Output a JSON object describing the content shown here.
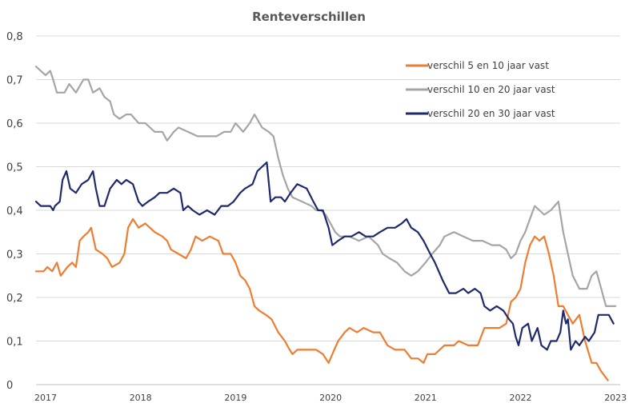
{
  "chart_data": {
    "type": "line",
    "title": "Renteverschillen",
    "xlabel": "",
    "ylabel": "",
    "ylim": [
      0,
      0.8
    ],
    "xlim": [
      2017.0,
      2023.15
    ],
    "y_ticks": [
      "0",
      "0,1",
      "0,2",
      "0,3",
      "0,4",
      "0,5",
      "0,6",
      "0,7",
      "0,8"
    ],
    "x_ticks": [
      "2017",
      "2018",
      "2019",
      "2020",
      "2021",
      "2022",
      "2023"
    ],
    "grid": "horizontal",
    "legend_position": "top-right",
    "series": [
      {
        "name": "verschil 5 en 10 jaar vast",
        "color": "#ED7D31",
        "points": [
          [
            2017.0,
            0.26
          ],
          [
            2017.08,
            0.26
          ],
          [
            2017.12,
            0.27
          ],
          [
            2017.17,
            0.26
          ],
          [
            2017.22,
            0.28
          ],
          [
            2017.26,
            0.25
          ],
          [
            2017.33,
            0.27
          ],
          [
            2017.38,
            0.28
          ],
          [
            2017.42,
            0.27
          ],
          [
            2017.46,
            0.33
          ],
          [
            2017.5,
            0.34
          ],
          [
            2017.55,
            0.35
          ],
          [
            2017.58,
            0.36
          ],
          [
            2017.63,
            0.31
          ],
          [
            2017.7,
            0.3
          ],
          [
            2017.75,
            0.29
          ],
          [
            2017.8,
            0.27
          ],
          [
            2017.88,
            0.28
          ],
          [
            2017.93,
            0.3
          ],
          [
            2017.97,
            0.36
          ],
          [
            2018.02,
            0.38
          ],
          [
            2018.08,
            0.36
          ],
          [
            2018.15,
            0.37
          ],
          [
            2018.25,
            0.35
          ],
          [
            2018.33,
            0.34
          ],
          [
            2018.38,
            0.33
          ],
          [
            2018.42,
            0.31
          ],
          [
            2018.5,
            0.3
          ],
          [
            2018.58,
            0.29
          ],
          [
            2018.63,
            0.31
          ],
          [
            2018.68,
            0.34
          ],
          [
            2018.75,
            0.33
          ],
          [
            2018.83,
            0.34
          ],
          [
            2018.92,
            0.33
          ],
          [
            2018.97,
            0.3
          ],
          [
            2019.05,
            0.3
          ],
          [
            2019.1,
            0.28
          ],
          [
            2019.15,
            0.25
          ],
          [
            2019.2,
            0.24
          ],
          [
            2019.25,
            0.22
          ],
          [
            2019.3,
            0.18
          ],
          [
            2019.35,
            0.17
          ],
          [
            2019.42,
            0.16
          ],
          [
            2019.48,
            0.15
          ],
          [
            2019.55,
            0.12
          ],
          [
            2019.62,
            0.1
          ],
          [
            2019.67,
            0.08
          ],
          [
            2019.7,
            0.07
          ],
          [
            2019.75,
            0.08
          ],
          [
            2019.85,
            0.08
          ],
          [
            2019.95,
            0.08
          ],
          [
            2020.02,
            0.07
          ],
          [
            2020.08,
            0.05
          ],
          [
            2020.12,
            0.07
          ],
          [
            2020.18,
            0.1
          ],
          [
            2020.25,
            0.12
          ],
          [
            2020.3,
            0.13
          ],
          [
            2020.38,
            0.12
          ],
          [
            2020.45,
            0.13
          ],
          [
            2020.55,
            0.12
          ],
          [
            2020.62,
            0.12
          ],
          [
            2020.7,
            0.09
          ],
          [
            2020.78,
            0.08
          ],
          [
            2020.88,
            0.08
          ],
          [
            2020.95,
            0.06
          ],
          [
            2021.02,
            0.06
          ],
          [
            2021.08,
            0.05
          ],
          [
            2021.12,
            0.07
          ],
          [
            2021.2,
            0.07
          ],
          [
            2021.3,
            0.09
          ],
          [
            2021.4,
            0.09
          ],
          [
            2021.45,
            0.1
          ],
          [
            2021.55,
            0.09
          ],
          [
            2021.65,
            0.09
          ],
          [
            2021.72,
            0.13
          ],
          [
            2021.8,
            0.13
          ],
          [
            2021.88,
            0.13
          ],
          [
            2021.95,
            0.14
          ],
          [
            2022.0,
            0.19
          ],
          [
            2022.05,
            0.2
          ],
          [
            2022.1,
            0.22
          ],
          [
            2022.15,
            0.28
          ],
          [
            2022.2,
            0.32
          ],
          [
            2022.25,
            0.34
          ],
          [
            2022.3,
            0.33
          ],
          [
            2022.35,
            0.34
          ],
          [
            2022.4,
            0.3
          ],
          [
            2022.45,
            0.25
          ],
          [
            2022.5,
            0.18
          ],
          [
            2022.55,
            0.18
          ],
          [
            2022.6,
            0.16
          ],
          [
            2022.65,
            0.14
          ],
          [
            2022.72,
            0.16
          ],
          [
            2022.78,
            0.1
          ],
          [
            2022.85,
            0.05
          ],
          [
            2022.9,
            0.05
          ],
          [
            2022.95,
            0.03
          ],
          [
            2023.02,
            0.01
          ]
        ]
      },
      {
        "name": "verschil 10 en 20 jaar vast",
        "color": "#A5A5A5",
        "points": [
          [
            2017.0,
            0.73
          ],
          [
            2017.05,
            0.72
          ],
          [
            2017.1,
            0.71
          ],
          [
            2017.15,
            0.72
          ],
          [
            2017.18,
            0.7
          ],
          [
            2017.22,
            0.67
          ],
          [
            2017.3,
            0.67
          ],
          [
            2017.35,
            0.69
          ],
          [
            2017.42,
            0.67
          ],
          [
            2017.5,
            0.7
          ],
          [
            2017.55,
            0.7
          ],
          [
            2017.6,
            0.67
          ],
          [
            2017.67,
            0.68
          ],
          [
            2017.72,
            0.66
          ],
          [
            2017.78,
            0.65
          ],
          [
            2017.82,
            0.62
          ],
          [
            2017.88,
            0.61
          ],
          [
            2017.95,
            0.62
          ],
          [
            2018.0,
            0.62
          ],
          [
            2018.08,
            0.6
          ],
          [
            2018.15,
            0.6
          ],
          [
            2018.25,
            0.58
          ],
          [
            2018.33,
            0.58
          ],
          [
            2018.38,
            0.56
          ],
          [
            2018.45,
            0.58
          ],
          [
            2018.5,
            0.59
          ],
          [
            2018.6,
            0.58
          ],
          [
            2018.7,
            0.57
          ],
          [
            2018.8,
            0.57
          ],
          [
            2018.9,
            0.57
          ],
          [
            2018.98,
            0.58
          ],
          [
            2019.05,
            0.58
          ],
          [
            2019.1,
            0.6
          ],
          [
            2019.18,
            0.58
          ],
          [
            2019.25,
            0.6
          ],
          [
            2019.3,
            0.62
          ],
          [
            2019.38,
            0.59
          ],
          [
            2019.45,
            0.58
          ],
          [
            2019.5,
            0.57
          ],
          [
            2019.55,
            0.52
          ],
          [
            2019.6,
            0.48
          ],
          [
            2019.65,
            0.45
          ],
          [
            2019.7,
            0.43
          ],
          [
            2019.8,
            0.42
          ],
          [
            2019.9,
            0.41
          ],
          [
            2019.95,
            0.4
          ],
          [
            2020.0,
            0.4
          ],
          [
            2020.05,
            0.39
          ],
          [
            2020.1,
            0.37
          ],
          [
            2020.15,
            0.35
          ],
          [
            2020.2,
            0.34
          ],
          [
            2020.3,
            0.34
          ],
          [
            2020.4,
            0.33
          ],
          [
            2020.5,
            0.34
          ],
          [
            2020.55,
            0.33
          ],
          [
            2020.6,
            0.32
          ],
          [
            2020.65,
            0.3
          ],
          [
            2020.72,
            0.29
          ],
          [
            2020.8,
            0.28
          ],
          [
            2020.88,
            0.26
          ],
          [
            2020.95,
            0.25
          ],
          [
            2021.02,
            0.26
          ],
          [
            2021.1,
            0.28
          ],
          [
            2021.17,
            0.3
          ],
          [
            2021.25,
            0.32
          ],
          [
            2021.3,
            0.34
          ],
          [
            2021.4,
            0.35
          ],
          [
            2021.5,
            0.34
          ],
          [
            2021.6,
            0.33
          ],
          [
            2021.7,
            0.33
          ],
          [
            2021.8,
            0.32
          ],
          [
            2021.88,
            0.32
          ],
          [
            2021.95,
            0.31
          ],
          [
            2022.0,
            0.29
          ],
          [
            2022.05,
            0.3
          ],
          [
            2022.1,
            0.33
          ],
          [
            2022.15,
            0.35
          ],
          [
            2022.2,
            0.38
          ],
          [
            2022.25,
            0.41
          ],
          [
            2022.3,
            0.4
          ],
          [
            2022.35,
            0.39
          ],
          [
            2022.42,
            0.4
          ],
          [
            2022.5,
            0.42
          ],
          [
            2022.55,
            0.35
          ],
          [
            2022.6,
            0.3
          ],
          [
            2022.65,
            0.25
          ],
          [
            2022.72,
            0.22
          ],
          [
            2022.8,
            0.22
          ],
          [
            2022.85,
            0.25
          ],
          [
            2022.9,
            0.26
          ],
          [
            2022.95,
            0.22
          ],
          [
            2023.0,
            0.18
          ],
          [
            2023.1,
            0.18
          ]
        ]
      },
      {
        "name": "verschil 20 en 30 jaar vast",
        "color": "#1F2A6B",
        "points": [
          [
            2017.0,
            0.42
          ],
          [
            2017.05,
            0.41
          ],
          [
            2017.1,
            0.41
          ],
          [
            2017.15,
            0.41
          ],
          [
            2017.18,
            0.4
          ],
          [
            2017.2,
            0.41
          ],
          [
            2017.25,
            0.42
          ],
          [
            2017.28,
            0.47
          ],
          [
            2017.32,
            0.49
          ],
          [
            2017.36,
            0.45
          ],
          [
            2017.42,
            0.44
          ],
          [
            2017.48,
            0.46
          ],
          [
            2017.55,
            0.47
          ],
          [
            2017.6,
            0.49
          ],
          [
            2017.63,
            0.45
          ],
          [
            2017.67,
            0.41
          ],
          [
            2017.72,
            0.41
          ],
          [
            2017.78,
            0.45
          ],
          [
            2017.85,
            0.47
          ],
          [
            2017.9,
            0.46
          ],
          [
            2017.95,
            0.47
          ],
          [
            2018.02,
            0.46
          ],
          [
            2018.08,
            0.42
          ],
          [
            2018.12,
            0.41
          ],
          [
            2018.18,
            0.42
          ],
          [
            2018.25,
            0.43
          ],
          [
            2018.3,
            0.44
          ],
          [
            2018.38,
            0.44
          ],
          [
            2018.45,
            0.45
          ],
          [
            2018.52,
            0.44
          ],
          [
            2018.55,
            0.4
          ],
          [
            2018.6,
            0.41
          ],
          [
            2018.65,
            0.4
          ],
          [
            2018.72,
            0.39
          ],
          [
            2018.8,
            0.4
          ],
          [
            2018.88,
            0.39
          ],
          [
            2018.95,
            0.41
          ],
          [
            2019.02,
            0.41
          ],
          [
            2019.08,
            0.42
          ],
          [
            2019.15,
            0.44
          ],
          [
            2019.2,
            0.45
          ],
          [
            2019.28,
            0.46
          ],
          [
            2019.33,
            0.49
          ],
          [
            2019.38,
            0.5
          ],
          [
            2019.43,
            0.51
          ],
          [
            2019.47,
            0.42
          ],
          [
            2019.52,
            0.43
          ],
          [
            2019.58,
            0.43
          ],
          [
            2019.62,
            0.42
          ],
          [
            2019.68,
            0.44
          ],
          [
            2019.75,
            0.46
          ],
          [
            2019.85,
            0.45
          ],
          [
            2019.92,
            0.42
          ],
          [
            2019.97,
            0.4
          ],
          [
            2020.02,
            0.4
          ],
          [
            2020.08,
            0.36
          ],
          [
            2020.12,
            0.32
          ],
          [
            2020.18,
            0.33
          ],
          [
            2020.25,
            0.34
          ],
          [
            2020.32,
            0.34
          ],
          [
            2020.4,
            0.35
          ],
          [
            2020.47,
            0.34
          ],
          [
            2020.55,
            0.34
          ],
          [
            2020.62,
            0.35
          ],
          [
            2020.7,
            0.36
          ],
          [
            2020.78,
            0.36
          ],
          [
            2020.85,
            0.37
          ],
          [
            2020.9,
            0.38
          ],
          [
            2020.95,
            0.36
          ],
          [
            2021.02,
            0.35
          ],
          [
            2021.08,
            0.33
          ],
          [
            2021.15,
            0.3
          ],
          [
            2021.2,
            0.28
          ],
          [
            2021.28,
            0.24
          ],
          [
            2021.35,
            0.21
          ],
          [
            2021.42,
            0.21
          ],
          [
            2021.5,
            0.22
          ],
          [
            2021.55,
            0.21
          ],
          [
            2021.62,
            0.22
          ],
          [
            2021.68,
            0.21
          ],
          [
            2021.72,
            0.18
          ],
          [
            2021.78,
            0.17
          ],
          [
            2021.85,
            0.18
          ],
          [
            2021.92,
            0.17
          ],
          [
            2021.98,
            0.15
          ],
          [
            2022.02,
            0.14
          ],
          [
            2022.05,
            0.11
          ],
          [
            2022.08,
            0.09
          ],
          [
            2022.12,
            0.13
          ],
          [
            2022.18,
            0.14
          ],
          [
            2022.22,
            0.1
          ],
          [
            2022.28,
            0.13
          ],
          [
            2022.32,
            0.09
          ],
          [
            2022.38,
            0.08
          ],
          [
            2022.42,
            0.1
          ],
          [
            2022.48,
            0.1
          ],
          [
            2022.52,
            0.12
          ],
          [
            2022.55,
            0.17
          ],
          [
            2022.58,
            0.14
          ],
          [
            2022.6,
            0.15
          ],
          [
            2022.63,
            0.08
          ],
          [
            2022.68,
            0.1
          ],
          [
            2022.72,
            0.09
          ],
          [
            2022.78,
            0.11
          ],
          [
            2022.82,
            0.1
          ],
          [
            2022.88,
            0.12
          ],
          [
            2022.92,
            0.16
          ],
          [
            2022.98,
            0.16
          ],
          [
            2023.03,
            0.16
          ],
          [
            2023.08,
            0.14
          ]
        ]
      }
    ]
  }
}
